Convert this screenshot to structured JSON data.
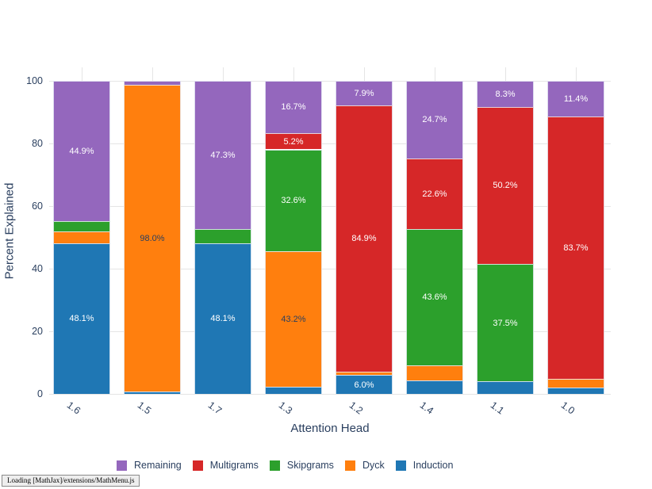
{
  "chart_data": {
    "type": "bar",
    "stacked": true,
    "title": "",
    "xlabel": "Attention Head",
    "ylabel": "Percent Explained",
    "ylim": [
      0,
      104
    ],
    "yticks": [
      0,
      20,
      40,
      60,
      80,
      100
    ],
    "grid": true,
    "categories": [
      "1.6",
      "1.5",
      "1.7",
      "1.3",
      "1.2",
      "1.4",
      "1.1",
      "1.0"
    ],
    "series": [
      {
        "name": "Induction",
        "color": "#1f77b4",
        "label_color": "#ffffff",
        "values": [
          48.1,
          0.8,
          48.1,
          2.3,
          6.0,
          4.2,
          4.0,
          2.0
        ],
        "labels": [
          "48.1%",
          null,
          "48.1%",
          null,
          "6.0%",
          null,
          null,
          null
        ]
      },
      {
        "name": "Dyck",
        "color": "#ff7f0e",
        "label_color": "#2a3f5f",
        "values": [
          3.9,
          98.0,
          0,
          43.2,
          1.2,
          4.9,
          0,
          2.9
        ],
        "labels": [
          null,
          "98.0%",
          null,
          "43.2%",
          null,
          null,
          null,
          null
        ]
      },
      {
        "name": "Skipgrams",
        "color": "#2ca02c",
        "label_color": "#ffffff",
        "values": [
          3.1,
          0,
          4.6,
          32.6,
          0,
          43.6,
          37.5,
          0
        ],
        "labels": [
          null,
          null,
          null,
          "32.6%",
          null,
          "43.6%",
          "37.5%",
          null
        ]
      },
      {
        "name": "Multigrams",
        "color": "#d62728",
        "label_color": "#ffffff",
        "values": [
          0,
          0,
          0,
          5.2,
          84.9,
          22.6,
          50.2,
          83.7
        ],
        "labels": [
          null,
          null,
          null,
          "5.2%",
          "84.9%",
          "22.6%",
          "50.2%",
          "83.7%"
        ]
      },
      {
        "name": "Remaining",
        "color": "#9467bd",
        "label_color": "#ffffff",
        "values": [
          44.9,
          1.2,
          47.3,
          16.7,
          7.9,
          24.7,
          8.3,
          11.4
        ],
        "labels": [
          "44.9%",
          null,
          "47.3%",
          "16.7%",
          "7.9%",
          "24.7%",
          "8.3%",
          "11.4%"
        ]
      }
    ],
    "legend_position": "bottom",
    "legend_items": [
      {
        "label": "Remaining",
        "color": "#9467bd"
      },
      {
        "label": "Multigrams",
        "color": "#d62728"
      },
      {
        "label": "Skipgrams",
        "color": "#2ca02c"
      },
      {
        "label": "Dyck",
        "color": "#ff7f0e"
      },
      {
        "label": "Induction",
        "color": "#1f77b4"
      }
    ]
  },
  "status_bar": {
    "text": "Loading [MathJax]/extensions/MathMenu.js"
  },
  "colors": {
    "grid": "#e5e5e5",
    "axis_text": "#2a3f5f",
    "background": "#ffffff"
  }
}
